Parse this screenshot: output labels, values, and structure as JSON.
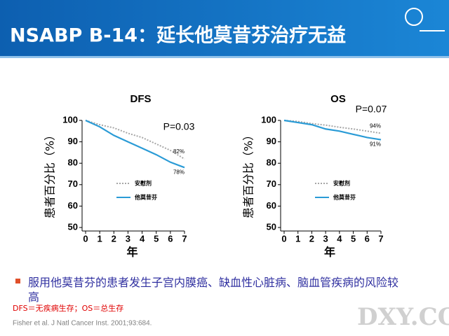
{
  "header": {
    "title": "NSABP B-14：延长他莫昔芬治疗无益"
  },
  "chart_data": [
    {
      "type": "line",
      "title": "DFS",
      "annotation": "P=0.03",
      "x_label": "年",
      "y_label": "患者百分比（%）",
      "x": [
        0,
        1,
        2,
        3,
        4,
        5,
        6,
        7
      ],
      "xlim": [
        0,
        7
      ],
      "xticks": [
        0,
        1,
        2,
        3,
        4,
        5,
        6,
        7
      ],
      "ylim": [
        50,
        100
      ],
      "yticks": [
        50,
        60,
        70,
        80,
        90,
        100
      ],
      "series": [
        {
          "name": "安慰剂",
          "color": "#a6a6a6",
          "style": "dotted",
          "values": [
            100,
            98,
            96.5,
            94,
            92,
            89,
            86,
            82
          ],
          "end_label": "82%"
        },
        {
          "name": "他莫昔芬",
          "color": "#2a9bd6",
          "style": "solid",
          "values": [
            100,
            97,
            93,
            90,
            87,
            84,
            80.5,
            78
          ],
          "end_label": "78%"
        }
      ]
    },
    {
      "type": "line",
      "title": "OS",
      "annotation": "P=0.07",
      "x_label": "年",
      "y_label": "患者百分比（%）",
      "x": [
        0,
        1,
        2,
        3,
        4,
        5,
        6,
        7
      ],
      "xlim": [
        0,
        7
      ],
      "xticks": [
        0,
        1,
        2,
        3,
        4,
        5,
        6,
        7
      ],
      "ylim": [
        50,
        100
      ],
      "yticks": [
        50,
        60,
        70,
        80,
        90,
        100
      ],
      "series": [
        {
          "name": "安慰剂",
          "color": "#a6a6a6",
          "style": "dotted",
          "values": [
            100,
            99.5,
            98.5,
            97.8,
            96.8,
            96,
            95,
            94
          ],
          "end_label": "94%"
        },
        {
          "name": "他莫昔芬",
          "color": "#2a9bd6",
          "style": "solid",
          "values": [
            100,
            99,
            98,
            96,
            95,
            93.5,
            92,
            91
          ],
          "end_label": "91%"
        }
      ]
    }
  ],
  "bullet": "服用他莫昔芬的患者发生子宫内膜癌、缺血性心脏病、脑血管疾病的风险较高",
  "footnote": "DFS＝无疾病生存；OS＝总生存",
  "reference": "Fisher et al. J Natl Cancer Inst. 2001;93:684.",
  "watermark": "DXY.COM"
}
